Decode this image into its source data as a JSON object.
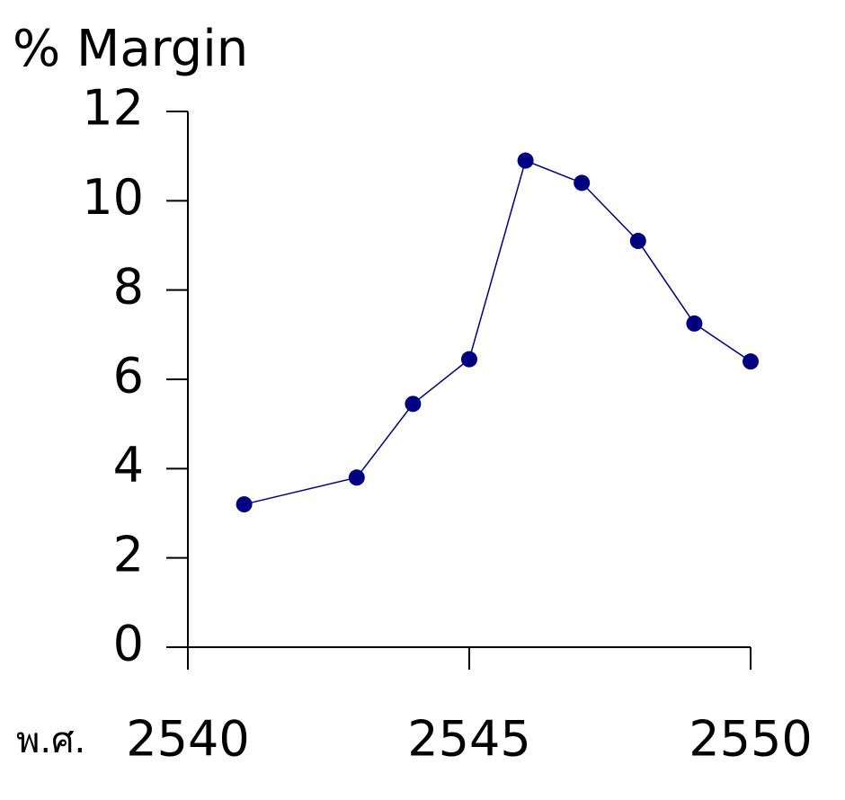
{
  "chart_data": {
    "type": "line",
    "title": "% Margin",
    "x_label": "พ.ศ.",
    "x": [
      2541,
      2543,
      2544,
      2545,
      2546,
      2547,
      2548,
      2549,
      2550
    ],
    "series": [
      {
        "color": "#000080",
        "values": [
          3.2,
          3.8,
          5.45,
          6.45,
          10.9,
          10.4,
          9.1,
          7.25,
          6.4
        ]
      }
    ],
    "xlim": [
      2540,
      2550
    ],
    "xticks": [
      2540,
      2545,
      2550
    ],
    "ylim": [
      0,
      12
    ],
    "yticks": [
      0,
      2,
      4,
      6,
      8,
      10,
      12
    ],
    "grid": false
  }
}
